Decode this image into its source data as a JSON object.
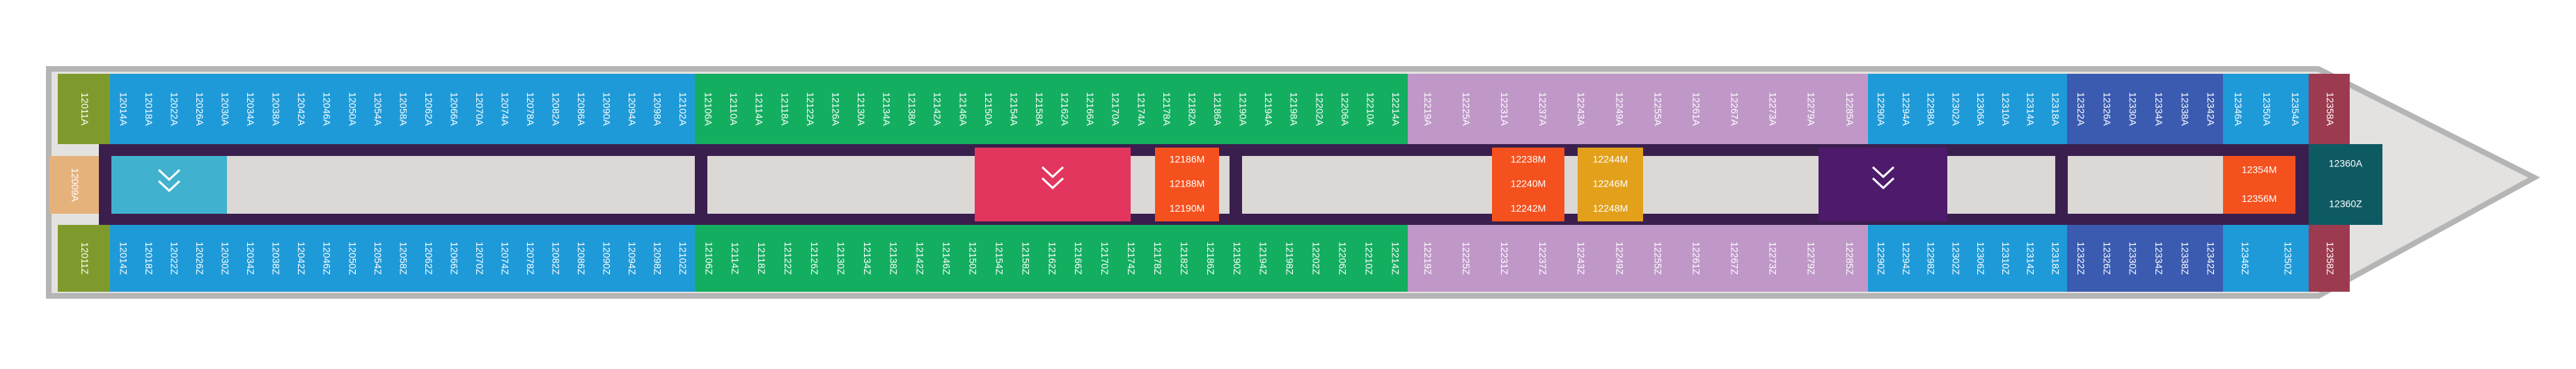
{
  "deck": {
    "top_rows": [
      {
        "color": "#7f9a2c",
        "cabins": [
          "12011A"
        ]
      },
      {
        "color": "#1f9ad8",
        "cabins": [
          "12014A",
          "12018A",
          "12022A",
          "12026A",
          "12030A",
          "12034A",
          "12038A",
          "12042A",
          "12046A",
          "12050A",
          "12054A",
          "12058A",
          "12062A",
          "12066A",
          "12070A",
          "12074A",
          "12078A",
          "12082A",
          "12086A",
          "12090A",
          "12094A",
          "12098A",
          "12102A"
        ]
      },
      {
        "color": "#14ae60",
        "cabins": [
          "12106A",
          "12110A",
          "12114A",
          "12118A",
          "12122A",
          "12126A",
          "12130A",
          "12134A",
          "12138A",
          "12142A",
          "12146A",
          "12150A",
          "12154A",
          "12158A",
          "12162A",
          "12166A",
          "12170A",
          "12174A",
          "12178A",
          "12182A",
          "12186A",
          "12190A",
          "12194A",
          "12198A",
          "12202A",
          "12206A",
          "12210A",
          "12214A"
        ]
      },
      {
        "color": "#bf98c8",
        "cabins": [
          "12219A",
          "12225A",
          "12231A",
          "12237A",
          "12243A",
          "12249A",
          "12255A",
          "12261A",
          "12267A",
          "12273A",
          "12279A",
          "12285A"
        ]
      },
      {
        "color": "#1f9ad8",
        "cabins": [
          "12290A",
          "12294A",
          "12298A",
          "12302A",
          "12306A",
          "12310A",
          "12314A",
          "12318A"
        ]
      },
      {
        "color": "#3a5bb0",
        "cabins": [
          "12322A",
          "12326A",
          "12330A",
          "12334A",
          "12338A",
          "12342A"
        ]
      },
      {
        "color": "#1f9ad8",
        "cabins": [
          "12346A",
          "12350A",
          "12354A"
        ]
      },
      {
        "color": "#9c3a50",
        "cabins": [
          "12358A"
        ]
      }
    ],
    "bottom_rows": [
      {
        "color": "#7f9a2c",
        "cabins": [
          "12011Z"
        ]
      },
      {
        "color": "#1f9ad8",
        "cabins": [
          "12014Z",
          "12018Z",
          "12022Z",
          "12026Z",
          "12030Z",
          "12034Z",
          "12038Z",
          "12042Z",
          "12046Z",
          "12050Z",
          "12054Z",
          "12058Z",
          "12062Z",
          "12066Z",
          "12070Z",
          "12074Z",
          "12078Z",
          "12082Z",
          "12086Z",
          "12090Z",
          "12094Z",
          "12098Z",
          "12102Z"
        ]
      },
      {
        "color": "#14ae60",
        "cabins": [
          "12106Z",
          "12114Z",
          "12118Z",
          "12122Z",
          "12126Z",
          "12130Z",
          "12134Z",
          "12138Z",
          "12142Z",
          "12146Z",
          "12150Z",
          "12154Z",
          "12158Z",
          "12162Z",
          "12166Z",
          "12170Z",
          "12174Z",
          "12178Z",
          "12182Z",
          "12186Z",
          "12190Z",
          "12194Z",
          "12198Z",
          "12202Z",
          "12206Z",
          "12210Z",
          "12214Z"
        ]
      },
      {
        "color": "#bf98c8",
        "cabins": [
          "12219Z",
          "12225Z",
          "12231Z",
          "12237Z",
          "12243Z",
          "12249Z",
          "12255Z",
          "12261Z",
          "12267Z",
          "12273Z",
          "12279Z",
          "12285Z"
        ]
      },
      {
        "color": "#1f9ad8",
        "cabins": [
          "12290Z",
          "12294Z",
          "12298Z",
          "12302Z",
          "12306Z",
          "12310Z",
          "12314Z",
          "12318Z"
        ]
      },
      {
        "color": "#3a5bb0",
        "cabins": [
          "12322Z",
          "12326Z",
          "12330Z",
          "12334Z",
          "12338Z",
          "12342Z"
        ]
      },
      {
        "color": "#1f9ad8",
        "cabins": [
          "12346Z",
          "12350Z"
        ]
      },
      {
        "color": "#9c3a50",
        "cabins": [
          "12358Z"
        ]
      }
    ],
    "middle_blocks": [
      {
        "color": "#e6b27c",
        "cabins": [
          "12009A"
        ]
      },
      {
        "color": "#f4511e",
        "cabins": [
          "12186M",
          "12188M",
          "12190M"
        ]
      },
      {
        "color": "#f4511e",
        "cabins": [
          "12238M",
          "12240M",
          "12242M"
        ]
      },
      {
        "color": "#e3a01b",
        "cabins": [
          "12244M",
          "12246M",
          "12248M"
        ]
      },
      {
        "color": "#f4511e",
        "cabins": [
          "12354M",
          "12356M"
        ]
      },
      {
        "color": "#0e5a63",
        "cabins": [
          "12360A",
          "12360Z"
        ]
      }
    ]
  }
}
